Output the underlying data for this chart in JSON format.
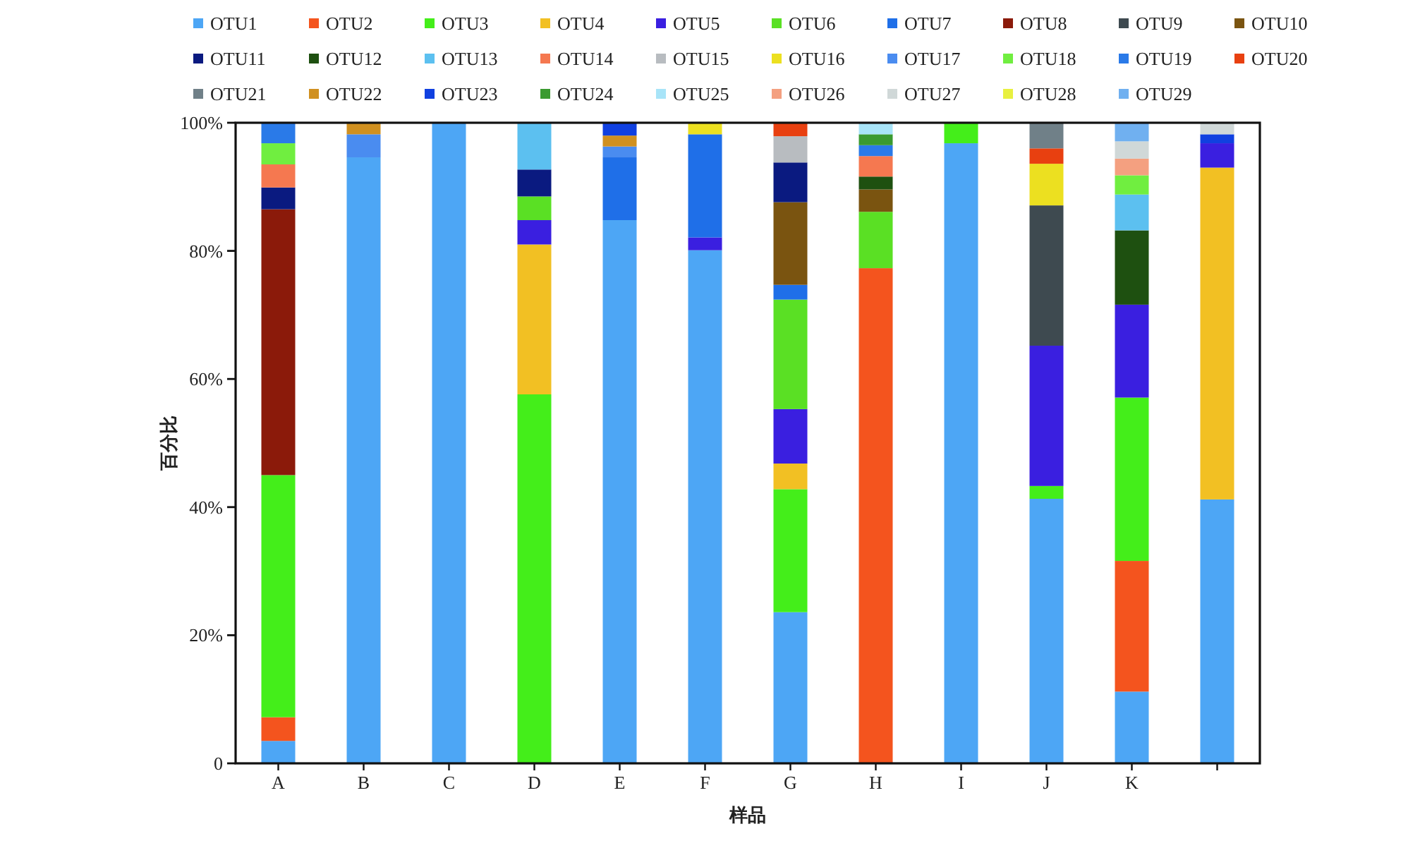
{
  "chart_data": {
    "type": "bar",
    "stacked": true,
    "legend": "top",
    "xlabel": "样品",
    "ylabel": "百分比",
    "categories": [
      "A",
      "B",
      "C",
      "D",
      "E",
      "F",
      "G",
      "H",
      "I",
      "J",
      "K",
      null
    ],
    "ylim": [
      0,
      100
    ],
    "yticks": [
      0,
      {
        "value": 20,
        "label": "20%"
      },
      {
        "value": 40,
        "label": "40%"
      },
      {
        "value": 60,
        "label": "60%"
      },
      {
        "value": 80,
        "label": "80%"
      },
      {
        "value": 100,
        "label": "100%"
      }
    ],
    "series": [
      {
        "name": "OTU1",
        "color": "#4da6f5",
        "values": [
          3.5,
          94.6,
          100,
          null,
          84.8,
          80.1,
          23.6,
          null,
          96.8,
          41.3,
          11.2,
          41.2
        ]
      },
      {
        "name": "OTU2",
        "color": "#f4541e",
        "values": [
          3.7,
          null,
          null,
          null,
          null,
          null,
          null,
          77.3,
          null,
          null,
          20.4,
          null
        ]
      },
      {
        "name": "OTU3",
        "color": "#44ee1a",
        "values": [
          37.8,
          null,
          null,
          57.6,
          null,
          null,
          19.2,
          null,
          3.2,
          2.0,
          25.5,
          null
        ]
      },
      {
        "name": "OTU4",
        "color": "#f2c023",
        "values": [
          null,
          null,
          null,
          23.4,
          null,
          null,
          4.0,
          null,
          null,
          null,
          null,
          51.8
        ]
      },
      {
        "name": "OTU5",
        "color": "#3a1fe0",
        "values": [
          null,
          null,
          null,
          3.8,
          null,
          2.0,
          8.5,
          null,
          null,
          21.9,
          14.5,
          3.8
        ]
      },
      {
        "name": "OTU6",
        "color": "#5ae024",
        "values": [
          null,
          null,
          null,
          3.7,
          null,
          null,
          17.1,
          8.8,
          null,
          null,
          null,
          null
        ]
      },
      {
        "name": "OTU7",
        "color": "#1f6fe8",
        "values": [
          null,
          null,
          null,
          null,
          9.8,
          16.1,
          2.3,
          null,
          null,
          null,
          null,
          null
        ]
      },
      {
        "name": "OTU8",
        "color": "#8b1a0a",
        "values": [
          41.5,
          null,
          null,
          null,
          null,
          null,
          null,
          null,
          null,
          null,
          null,
          null
        ]
      },
      {
        "name": "OTU9",
        "color": "#3e4a50",
        "values": [
          null,
          null,
          null,
          null,
          null,
          null,
          null,
          null,
          null,
          21.9,
          null,
          null
        ]
      },
      {
        "name": "OTU10",
        "color": "#7a5410",
        "values": [
          null,
          null,
          null,
          null,
          null,
          null,
          12.9,
          3.5,
          null,
          null,
          null,
          null
        ]
      },
      {
        "name": "OTU11",
        "color": "#0a1a80",
        "values": [
          3.4,
          null,
          null,
          4.2,
          null,
          null,
          6.2,
          null,
          null,
          null,
          null,
          null
        ]
      },
      {
        "name": "OTU12",
        "color": "#1e5010",
        "values": [
          null,
          null,
          null,
          null,
          null,
          null,
          null,
          2.0,
          null,
          null,
          11.6,
          null
        ]
      },
      {
        "name": "OTU13",
        "color": "#5cc0f0",
        "values": [
          null,
          null,
          null,
          7.3,
          null,
          null,
          null,
          null,
          null,
          null,
          5.6,
          null
        ]
      },
      {
        "name": "OTU14",
        "color": "#f57850",
        "values": [
          3.6,
          null,
          null,
          null,
          null,
          null,
          null,
          3.2,
          null,
          null,
          null,
          null
        ]
      },
      {
        "name": "OTU15",
        "color": "#b8bcc0",
        "values": [
          null,
          null,
          null,
          null,
          null,
          null,
          4.1,
          null,
          null,
          null,
          null,
          null
        ]
      },
      {
        "name": "OTU16",
        "color": "#ece020",
        "values": [
          null,
          null,
          null,
          null,
          null,
          1.8,
          null,
          null,
          null,
          6.5,
          null,
          null
        ]
      },
      {
        "name": "OTU17",
        "color": "#4a8cf0",
        "values": [
          null,
          3.6,
          null,
          null,
          1.7,
          null,
          null,
          null,
          null,
          null,
          null,
          null
        ]
      },
      {
        "name": "OTU18",
        "color": "#70ee40",
        "values": [
          3.3,
          null,
          null,
          null,
          null,
          null,
          null,
          null,
          null,
          null,
          3.0,
          null
        ]
      },
      {
        "name": "OTU19",
        "color": "#2a7ae8",
        "values": [
          3.2,
          null,
          null,
          null,
          null,
          null,
          null,
          1.7,
          null,
          null,
          null,
          null
        ]
      },
      {
        "name": "OTU20",
        "color": "#e84010",
        "values": [
          null,
          null,
          null,
          null,
          null,
          null,
          2.1,
          null,
          null,
          2.4,
          null,
          null
        ]
      },
      {
        "name": "OTU21",
        "color": "#708088",
        "values": [
          null,
          null,
          null,
          null,
          null,
          null,
          null,
          null,
          null,
          4.0,
          null,
          null
        ]
      },
      {
        "name": "OTU22",
        "color": "#d09020",
        "values": [
          null,
          1.8,
          null,
          null,
          1.7,
          null,
          null,
          null,
          null,
          null,
          null,
          null
        ]
      },
      {
        "name": "OTU23",
        "color": "#1040e0",
        "values": [
          null,
          null,
          null,
          null,
          2.0,
          null,
          null,
          null,
          null,
          null,
          null,
          1.4
        ]
      },
      {
        "name": "OTU24",
        "color": "#3a9a30",
        "values": [
          null,
          null,
          null,
          null,
          null,
          null,
          null,
          1.7,
          null,
          null,
          null,
          null
        ]
      },
      {
        "name": "OTU25",
        "color": "#a8e4f8",
        "values": [
          null,
          null,
          null,
          null,
          null,
          null,
          null,
          1.8,
          null,
          null,
          null,
          null
        ]
      },
      {
        "name": "OTU26",
        "color": "#f4a080",
        "values": [
          null,
          null,
          null,
          null,
          null,
          null,
          null,
          null,
          null,
          null,
          2.6,
          null
        ]
      },
      {
        "name": "OTU27",
        "color": "#d0d8d8",
        "values": [
          null,
          null,
          null,
          null,
          null,
          null,
          null,
          null,
          null,
          null,
          2.7,
          1.8
        ]
      },
      {
        "name": "OTU28",
        "color": "#e8f040",
        "values": [
          null,
          null,
          null,
          null,
          null,
          null,
          null,
          null,
          null,
          null,
          null,
          null
        ]
      },
      {
        "name": "OTU29",
        "color": "#70b0f0",
        "values": [
          null,
          null,
          null,
          null,
          null,
          null,
          null,
          null,
          null,
          null,
          2.9,
          null
        ]
      }
    ]
  }
}
